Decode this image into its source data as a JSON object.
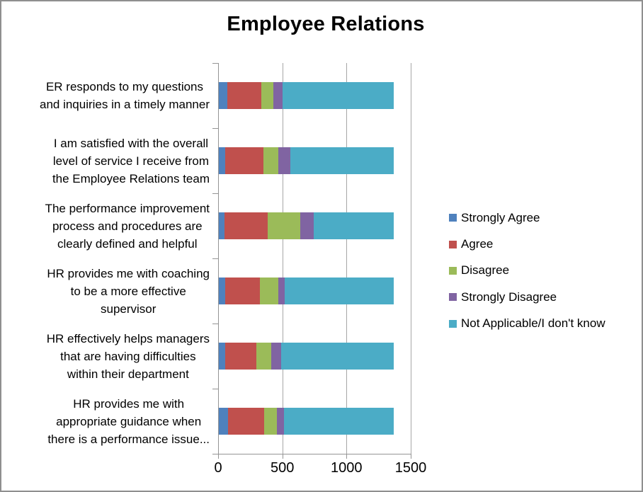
{
  "title": "Employee Relations",
  "colors": {
    "strongly_agree": "#4F81BD",
    "agree": "#C0504D",
    "disagree": "#9BBB59",
    "strongly_disagree": "#8064A2",
    "not_applicable": "#4BACC6",
    "axis_line": "#949494",
    "gridline": "#A6A6A6",
    "frame_border": "#8F8F8F"
  },
  "chart_data": {
    "type": "bar",
    "orientation": "horizontal",
    "stacked": true,
    "title": "Employee Relations",
    "grid": true,
    "legend_position": "right",
    "xlim": [
      0,
      1500
    ],
    "x_ticks": [
      0,
      500,
      1000,
      1500
    ],
    "x_tick_labels": [
      "0",
      "500",
      "1000",
      "1500"
    ],
    "categories": [
      "ER responds to my questions and inquiries in a timely manner",
      "I am satisfied with the overall level of service I receive from the Employee Relations team",
      "The performance improvement process and procedures are clearly defined and helpful",
      "HR provides me with coaching to be a more effective supervisor",
      "HR effectively helps managers that are having difficulties within their department",
      "HR provides me with appropriate guidance when there is a performance issue..."
    ],
    "category_display_lines": [
      [
        "ER responds to my questions",
        "and inquiries in a timely manner"
      ],
      [
        "I am satisfied with the overall",
        "level of service I receive from",
        "the Employee Relations team"
      ],
      [
        "The performance improvement",
        "process and procedures are",
        "clearly defined and helpful"
      ],
      [
        "HR provides me with coaching",
        "to be a more effective",
        "supervisor"
      ],
      [
        "HR effectively helps managers",
        "that are having difficulties",
        "within their department"
      ],
      [
        "HR provides me with",
        "appropriate guidance when",
        "there is a performance issue..."
      ]
    ],
    "series": [
      {
        "name": "Strongly Agree",
        "color": "#4F81BD",
        "values": [
          65,
          50,
          45,
          50,
          50,
          70
        ]
      },
      {
        "name": "Agree",
        "color": "#C0504D",
        "values": [
          265,
          300,
          335,
          270,
          245,
          285
        ]
      },
      {
        "name": "Disagree",
        "color": "#9BBB59",
        "values": [
          95,
          115,
          255,
          145,
          115,
          100
        ]
      },
      {
        "name": "Strongly Disagree",
        "color": "#8064A2",
        "values": [
          70,
          90,
          105,
          50,
          75,
          55
        ]
      },
      {
        "name": "Not Applicable/I don't know",
        "color": "#4BACC6",
        "values": [
          865,
          805,
          620,
          845,
          875,
          850
        ]
      }
    ]
  }
}
